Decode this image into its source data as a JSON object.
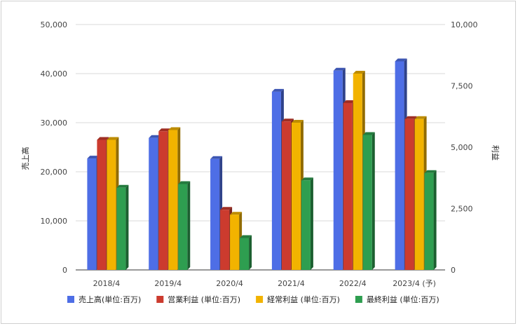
{
  "chart_data": {
    "type": "bar",
    "categories": [
      "2018/4",
      "2019/4",
      "2020/4",
      "2021/4",
      "2022/4",
      "2023/4 (予)"
    ],
    "series": [
      {
        "name": "売上高(単位:百万)",
        "axis": "left",
        "color": "#4e6ee6",
        "values": [
          22700,
          26900,
          22600,
          36300,
          40600,
          42500
        ]
      },
      {
        "name": "営業利益 (単位:百万)",
        "axis": "right",
        "color": "#cc3b2e",
        "values": [
          5300,
          5650,
          2450,
          6050,
          6800,
          6150
        ]
      },
      {
        "name": "経常利益 (単位:百万)",
        "axis": "right",
        "color": "#f2b300",
        "values": [
          5300,
          5700,
          2250,
          6000,
          8000,
          6150
        ]
      },
      {
        "name": "最終利益 (単位:百万)",
        "axis": "right",
        "color": "#2e9e50",
        "values": [
          3350,
          3500,
          1300,
          3650,
          5500,
          3950
        ]
      }
    ],
    "left_axis": {
      "label": "売上高",
      "ylim": [
        0,
        50000
      ],
      "ticks": [
        "0",
        "10,000",
        "20,000",
        "30,000",
        "40,000",
        "50,000"
      ]
    },
    "right_axis": {
      "label": "利益",
      "ylim": [
        0,
        10000
      ],
      "ticks": [
        "0",
        "2,500",
        "5,000",
        "7,500",
        "10,000"
      ]
    },
    "grid": true,
    "legend_position": "bottom"
  }
}
